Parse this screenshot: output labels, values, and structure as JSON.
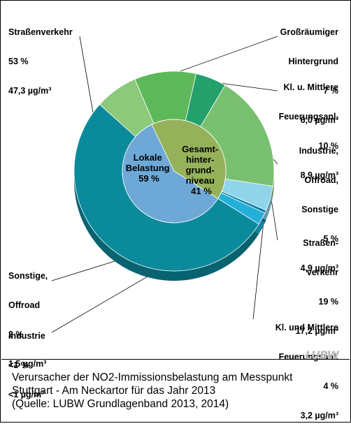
{
  "chart_data": {
    "type": "pie",
    "outer_ring": [
      {
        "name": "Straßenverkehr",
        "percent": "53 %",
        "value": 53,
        "concentration": "47,3 µg/m³",
        "group": "Lokale Belastung",
        "color": "#0b8a9b"
      },
      {
        "name": "Großräumiger Hintergrund",
        "percent": "7 %",
        "value": 7,
        "concentration": "6,0 µg/m³",
        "group": "Gesamthintergrundniveau",
        "color": "#8cc97a"
      },
      {
        "name": "Kl. u. Mittlere Feuerungsanl.",
        "percent": "10 %",
        "value": 10,
        "concentration": "8,9 µg/m³",
        "group": "Gesamthintergrundniveau",
        "color": "#5db85a"
      },
      {
        "name": "Industrie, Offroad, Sonstige",
        "percent": "5 %",
        "value": 5,
        "concentration": "4,9 µg/m³",
        "group": "Gesamthintergrundniveau",
        "color": "#23a06b"
      },
      {
        "name": "Straßenverkehr",
        "percent": "19 %",
        "value": 19,
        "concentration": "17,2 µg/m³",
        "group": "Gesamthintergrundniveau",
        "color": "#78c070"
      },
      {
        "name": "Kl. und Mittlere Feuerungsanl.",
        "percent": "4 %",
        "value": 4,
        "concentration": "3,2 µg/m³",
        "group": "Lokale Belastung",
        "color": "#8fd4e8"
      },
      {
        "name": "Industrie",
        "percent": "<1 %",
        "value": 0.5,
        "concentration": "<1 µg/m³",
        "group": "Lokale Belastung",
        "color": "#0e7fa6"
      },
      {
        "name": "Sonstige, Offroad",
        "percent": "2 %",
        "value": 2,
        "concentration": "1,5 µg/m³",
        "group": "Lokale Belastung",
        "color": "#22b0d8"
      }
    ],
    "inner_ring": [
      {
        "name": "Lokale Belastung",
        "percent": "59 %",
        "value": 59,
        "color": "#6ea8d6"
      },
      {
        "name": "Gesamthintergrundniveau",
        "percent": "41 %",
        "value": 41,
        "color": "#95b25a"
      }
    ]
  },
  "labels": {
    "strassenverkehr_local": {
      "line1": "Straßenverkehr",
      "line2": "53 %",
      "line3": "47,3 µg/m³"
    },
    "grossraeumig": {
      "line1": "Großräumiger",
      "line2": "Hintergrund",
      "line3": "7 %",
      "line4": "6,0 µg/m³"
    },
    "kl_mittlere_bg": {
      "line1": "Kl. u. Mittlere",
      "line2": "Feuerungsanl.",
      "line3": "10 %",
      "line4": "8,9 µg/m³"
    },
    "industrie_bg": {
      "line1": "Industrie,",
      "line2": "Offroad,",
      "line3": "Sonstige",
      "line4": "5 %",
      "line5": "4,9 µg/m³"
    },
    "strassenverkehr_bg": {
      "line1": "Straßen-",
      "line2": "verkehr",
      "line3": "19 %",
      "line4": "17,2 µg/m³"
    },
    "kl_mittlere_local": {
      "line1": "Kl. und Mittlere",
      "line2": "Feuerungsanl.",
      "line3": "4 %",
      "line4": "3,2 µg/m³"
    },
    "industrie_local": {
      "line1": "Industrie",
      "line2": "<1 %",
      "line3": "<1 µg/m³"
    },
    "sonstige_local": {
      "line1": "Sonstige,",
      "line2": "Offroad",
      "line3": "2 %",
      "line4": "1,5 µg/m³"
    },
    "inner_local": {
      "line1": "Lokale",
      "line2": "Belastung",
      "line3": "59 %"
    },
    "inner_bg": {
      "line1": "Gesamt-",
      "line2": "hinter-",
      "line3": "grund-",
      "line4": "niveau",
      "line5": "41 %"
    }
  },
  "logo_text": "LUBW",
  "caption": {
    "line1": "Verursacher der NO2-Immissionsbelastung am Messpunkt",
    "line2": "Stuttgart - Am Neckartor für das Jahr 2013",
    "line3": "(Quelle: LUBW Grundlagenband 2013, 2014)"
  }
}
